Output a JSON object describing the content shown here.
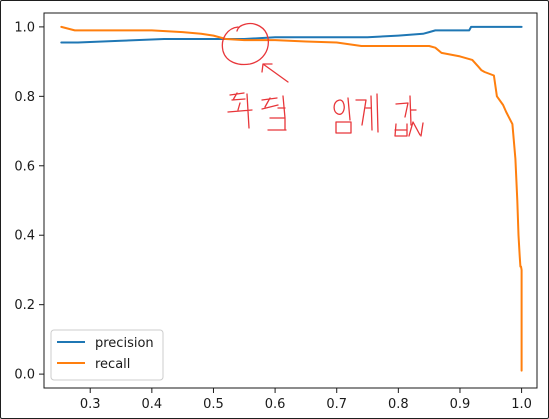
{
  "chart_data": {
    "type": "line",
    "title": "",
    "xlabel": "",
    "ylabel": "",
    "xlim": [
      0.225,
      1.025
    ],
    "ylim": [
      -0.04,
      1.04
    ],
    "grid": false,
    "legend_position": "lower-left",
    "x_ticks": [
      "0.3",
      "0.4",
      "0.5",
      "0.6",
      "0.7",
      "0.8",
      "0.9",
      "1.0"
    ],
    "x_tick_values": [
      0.3,
      0.4,
      0.5,
      0.6,
      0.7,
      0.8,
      0.9,
      1.0
    ],
    "y_ticks": [
      "0.0",
      "0.2",
      "0.4",
      "0.6",
      "0.8",
      "1.0"
    ],
    "y_tick_values": [
      0.0,
      0.2,
      0.4,
      0.6,
      0.8,
      1.0
    ],
    "series": [
      {
        "name": "precision",
        "color": "#1f77b4",
        "x": [
          0.253,
          0.28,
          0.35,
          0.42,
          0.5,
          0.55,
          0.6,
          0.65,
          0.7,
          0.75,
          0.8,
          0.84,
          0.85,
          0.86,
          0.9,
          0.915,
          0.918,
          1.0
        ],
        "y": [
          0.955,
          0.955,
          0.96,
          0.965,
          0.965,
          0.965,
          0.97,
          0.97,
          0.97,
          0.97,
          0.975,
          0.98,
          0.985,
          0.99,
          0.99,
          0.99,
          1.0,
          1.0
        ]
      },
      {
        "name": "recall",
        "color": "#ff7f0e",
        "x": [
          0.253,
          0.275,
          0.3,
          0.35,
          0.4,
          0.45,
          0.48,
          0.5,
          0.52,
          0.55,
          0.6,
          0.65,
          0.7,
          0.74,
          0.76,
          0.8,
          0.85,
          0.86,
          0.87,
          0.9,
          0.92,
          0.93,
          0.935,
          0.94,
          0.955,
          0.96,
          0.97,
          0.975,
          0.985,
          0.99,
          0.993,
          0.995,
          0.997,
          0.998,
          0.999,
          1.0,
          1.0
        ],
        "y": [
          1.0,
          0.99,
          0.99,
          0.99,
          0.99,
          0.985,
          0.98,
          0.975,
          0.965,
          0.962,
          0.962,
          0.958,
          0.955,
          0.945,
          0.945,
          0.945,
          0.945,
          0.94,
          0.925,
          0.915,
          0.905,
          0.885,
          0.875,
          0.87,
          0.86,
          0.8,
          0.775,
          0.755,
          0.72,
          0.62,
          0.5,
          0.4,
          0.34,
          0.31,
          0.31,
          0.3,
          0.01
        ]
      }
    ],
    "annotations": [
      {
        "text": "최적 임계 값",
        "color": "#e8363a",
        "x": 0.59,
        "y": 0.87
      }
    ]
  }
}
